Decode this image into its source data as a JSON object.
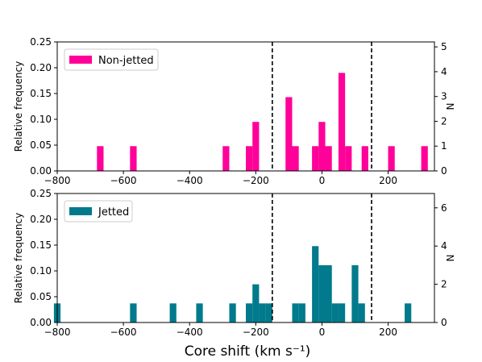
{
  "figure": {
    "xlabel": "Core shift (km s⁻¹)"
  },
  "chart_data": [
    {
      "type": "bar",
      "name": "top-panel",
      "series": [
        {
          "name": "Non-jetted",
          "color": "#ff0099"
        }
      ],
      "ylabel": "Relative frequency",
      "y2label": "N",
      "xlim": [
        -800,
        340
      ],
      "ylim": [
        0,
        0.25
      ],
      "y2lim": [
        0,
        5.2
      ],
      "bin_width": 20,
      "xticks": [
        -800,
        -600,
        -400,
        -200,
        0,
        200
      ],
      "xtick_labels": [
        "−800",
        "−600",
        "−400",
        "−200",
        "0",
        "200"
      ],
      "yticks": [
        "0.00",
        "0.05",
        "0.10",
        "0.15",
        "0.20",
        "0.25"
      ],
      "y2ticks": [
        "0",
        "1",
        "2",
        "3",
        "4",
        "5"
      ],
      "bins": [
        {
          "x": -670,
          "y": 0.048
        },
        {
          "x": -570,
          "y": 0.048
        },
        {
          "x": -290,
          "y": 0.048
        },
        {
          "x": -220,
          "y": 0.048
        },
        {
          "x": -200,
          "y": 0.095
        },
        {
          "x": -100,
          "y": 0.143
        },
        {
          "x": -80,
          "y": 0.048
        },
        {
          "x": -20,
          "y": 0.048
        },
        {
          "x": 0,
          "y": 0.095
        },
        {
          "x": 20,
          "y": 0.048
        },
        {
          "x": 60,
          "y": 0.19
        },
        {
          "x": 80,
          "y": 0.048
        },
        {
          "x": 130,
          "y": 0.048
        },
        {
          "x": 210,
          "y": 0.048
        },
        {
          "x": 310,
          "y": 0.048
        }
      ],
      "vlines": [
        -150,
        150
      ]
    },
    {
      "type": "bar",
      "name": "bottom-panel",
      "series": [
        {
          "name": "Jetted",
          "color": "#007a8c"
        }
      ],
      "ylabel": "Relative frequency",
      "y2label": "N",
      "xlim": [
        -800,
        340
      ],
      "ylim": [
        0,
        0.25
      ],
      "y2lim": [
        0,
        6.75
      ],
      "bin_width": 20,
      "xticks": [
        -800,
        -600,
        -400,
        -200,
        0,
        200
      ],
      "xtick_labels": [
        "−800",
        "−600",
        "−400",
        "−200",
        "0",
        "200"
      ],
      "yticks": [
        "0.00",
        "0.05",
        "0.10",
        "0.15",
        "0.20",
        "0.25"
      ],
      "y2ticks": [
        "0",
        "2",
        "4",
        "6"
      ],
      "bins": [
        {
          "x": -800,
          "y": 0.037
        },
        {
          "x": -570,
          "y": 0.037
        },
        {
          "x": -450,
          "y": 0.037
        },
        {
          "x": -370,
          "y": 0.037
        },
        {
          "x": -270,
          "y": 0.037
        },
        {
          "x": -220,
          "y": 0.037
        },
        {
          "x": -200,
          "y": 0.074
        },
        {
          "x": -180,
          "y": 0.037
        },
        {
          "x": -160,
          "y": 0.037
        },
        {
          "x": -80,
          "y": 0.037
        },
        {
          "x": -60,
          "y": 0.037
        },
        {
          "x": -20,
          "y": 0.148
        },
        {
          "x": 0,
          "y": 0.111
        },
        {
          "x": 20,
          "y": 0.111
        },
        {
          "x": 40,
          "y": 0.037
        },
        {
          "x": 60,
          "y": 0.037
        },
        {
          "x": 100,
          "y": 0.111
        },
        {
          "x": 120,
          "y": 0.037
        },
        {
          "x": 260,
          "y": 0.037
        }
      ],
      "vlines": [
        -150,
        150
      ]
    }
  ]
}
